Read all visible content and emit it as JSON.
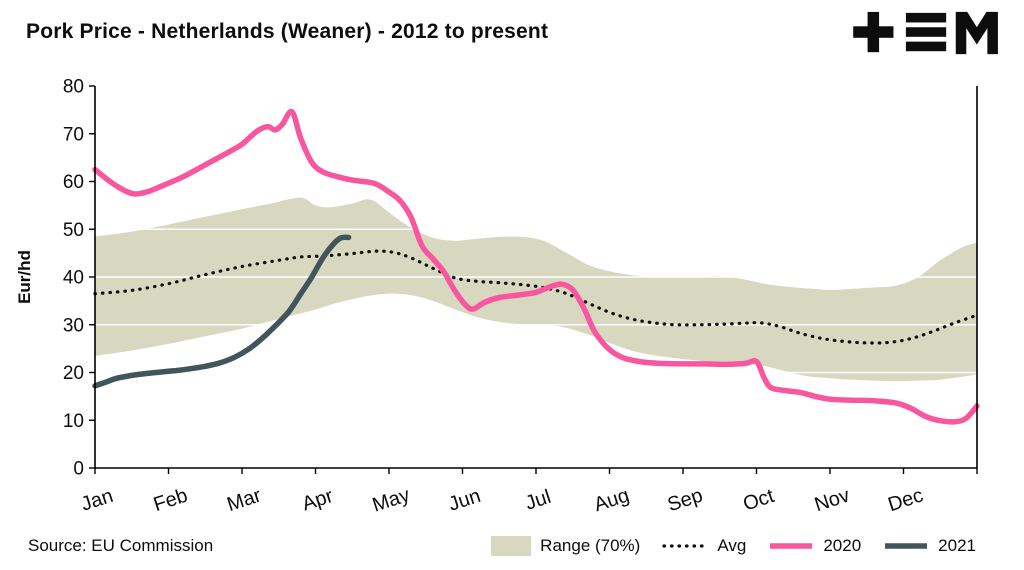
{
  "title": "Pork Price - Netherlands (Weaner) - 2012 to present",
  "source": "Source: EU Commission",
  "logo": {
    "name": "tem-logo"
  },
  "axis": {
    "y_label": "Eur/hd",
    "y_ticks": [
      0,
      10,
      20,
      30,
      40,
      50,
      60,
      70,
      80
    ],
    "x_labels": [
      "Jan",
      "Feb",
      "Mar",
      "Apr",
      "May",
      "Jun",
      "Jul",
      "Aug",
      "Sep",
      "Oct",
      "Nov",
      "Dec"
    ]
  },
  "legend": {
    "items": [
      {
        "label": "Range (70%)",
        "type": "band",
        "color": "#d8d8c1"
      },
      {
        "label": "Avg",
        "type": "dotted-line",
        "color": "#111111"
      },
      {
        "label": "2020",
        "type": "line",
        "color": "#f8579f"
      },
      {
        "label": "2021",
        "type": "line",
        "color": "#42555c"
      }
    ]
  },
  "colors": {
    "band": "#d8d8c1",
    "avg": "#111111",
    "y2020": "#f8579f",
    "y2021": "#42555c",
    "grid": "#ffffff",
    "axis": "#000000"
  },
  "chart_data": {
    "type": "line",
    "title": "Pork Price - Netherlands (Weaner) - 2012 to present",
    "xlabel": "",
    "ylabel": "Eur/hd",
    "ylim": [
      0,
      80
    ],
    "xlim": [
      0,
      12
    ],
    "x_unit": "months (0 = Jan 1, 12 = Dec 31)",
    "grid": "white horizontal gridlines every 10",
    "legend_position": "bottom",
    "x_labels": [
      "Jan",
      "Feb",
      "Mar",
      "Apr",
      "May",
      "Jun",
      "Jul",
      "Aug",
      "Sep",
      "Oct",
      "Nov",
      "Dec"
    ],
    "series": [
      {
        "name": "Range (70%)",
        "type": "band",
        "color": "#d8d8c1",
        "upper": [
          [
            0,
            48.5
          ],
          [
            0.5,
            49.5
          ],
          [
            1,
            51
          ],
          [
            1.5,
            52.6
          ],
          [
            2,
            54.2
          ],
          [
            2.4,
            55.4
          ],
          [
            2.8,
            56.6
          ],
          [
            3.0,
            55
          ],
          [
            3.2,
            54.6
          ],
          [
            3.5,
            55.4
          ],
          [
            3.75,
            56.2
          ],
          [
            4.0,
            53.5
          ],
          [
            4.3,
            50.3
          ],
          [
            4.6,
            48.2
          ],
          [
            4.9,
            47.6
          ],
          [
            5.2,
            48
          ],
          [
            5.5,
            48.4
          ],
          [
            5.8,
            48.4
          ],
          [
            6.1,
            47.6
          ],
          [
            6.4,
            45.2
          ],
          [
            6.7,
            42.6
          ],
          [
            7,
            41.2
          ],
          [
            7.3,
            40.4
          ],
          [
            7.6,
            40
          ],
          [
            7.9,
            40.1
          ],
          [
            8.2,
            40
          ],
          [
            8.5,
            40.2
          ],
          [
            8.8,
            39.6
          ],
          [
            9.1,
            38.6
          ],
          [
            9.4,
            38
          ],
          [
            9.7,
            37.6
          ],
          [
            10,
            37.3
          ],
          [
            10.3,
            37.5
          ],
          [
            10.6,
            37.8
          ],
          [
            10.9,
            38.2
          ],
          [
            11.2,
            40
          ],
          [
            11.5,
            43.5
          ],
          [
            11.8,
            46.2
          ],
          [
            12,
            47.2
          ]
        ],
        "lower": [
          [
            0,
            23.5
          ],
          [
            0.5,
            24.6
          ],
          [
            1,
            26
          ],
          [
            1.5,
            27.6
          ],
          [
            2,
            29.2
          ],
          [
            2.5,
            31.2
          ],
          [
            3,
            33.2
          ],
          [
            3.3,
            34.6
          ],
          [
            3.7,
            36
          ],
          [
            4,
            36.5
          ],
          [
            4.3,
            36.2
          ],
          [
            4.6,
            35
          ],
          [
            4.9,
            33.2
          ],
          [
            5.2,
            31.6
          ],
          [
            5.5,
            30.6
          ],
          [
            5.8,
            30.1
          ],
          [
            6.1,
            30
          ],
          [
            6.4,
            29.4
          ],
          [
            6.7,
            28
          ],
          [
            7,
            26.2
          ],
          [
            7.3,
            24.6
          ],
          [
            7.6,
            23.6
          ],
          [
            7.9,
            23
          ],
          [
            8.2,
            22.5
          ],
          [
            8.5,
            22.1
          ],
          [
            8.8,
            22
          ],
          [
            9.1,
            21.4
          ],
          [
            9.4,
            20.2
          ],
          [
            9.7,
            19.2
          ],
          [
            10,
            18.8
          ],
          [
            10.3,
            18.5
          ],
          [
            10.6,
            18.3
          ],
          [
            10.9,
            18.2
          ],
          [
            11.2,
            18.3
          ],
          [
            11.5,
            18.5
          ],
          [
            11.8,
            19.1
          ],
          [
            12,
            19.6
          ]
        ]
      },
      {
        "name": "Avg",
        "type": "dotted-line",
        "color": "#111111",
        "points": [
          [
            0,
            36.5
          ],
          [
            0.5,
            37.2
          ],
          [
            1,
            38.6
          ],
          [
            1.5,
            40.5
          ],
          [
            2,
            42.2
          ],
          [
            2.5,
            43.5
          ],
          [
            2.8,
            44.2
          ],
          [
            3.1,
            44.4
          ],
          [
            3.5,
            44.9
          ],
          [
            3.8,
            45.4
          ],
          [
            4.05,
            45.2
          ],
          [
            4.3,
            44
          ],
          [
            4.6,
            41.8
          ],
          [
            4.9,
            39.8
          ],
          [
            5.2,
            39.1
          ],
          [
            5.5,
            38.8
          ],
          [
            5.8,
            38.4
          ],
          [
            6.1,
            37.8
          ],
          [
            6.4,
            36.6
          ],
          [
            6.7,
            34.6
          ],
          [
            7,
            32.6
          ],
          [
            7.3,
            31.2
          ],
          [
            7.6,
            30.4
          ],
          [
            7.9,
            30
          ],
          [
            8.2,
            30
          ],
          [
            8.5,
            30.1
          ],
          [
            8.8,
            30.3
          ],
          [
            9.05,
            30.4
          ],
          [
            9.3,
            29.7
          ],
          [
            9.6,
            28.2
          ],
          [
            9.9,
            27.1
          ],
          [
            10.2,
            26.5
          ],
          [
            10.5,
            26.2
          ],
          [
            10.8,
            26.3
          ],
          [
            11.1,
            27.1
          ],
          [
            11.4,
            28.6
          ],
          [
            11.7,
            30.4
          ],
          [
            12,
            32
          ]
        ]
      },
      {
        "name": "2020",
        "type": "line",
        "color": "#f8579f",
        "points": [
          [
            0,
            62.5
          ],
          [
            0.25,
            59.5
          ],
          [
            0.5,
            57.5
          ],
          [
            0.7,
            57.8
          ],
          [
            0.9,
            59
          ],
          [
            1.2,
            61
          ],
          [
            1.5,
            63.5
          ],
          [
            1.8,
            66
          ],
          [
            2.0,
            67.8
          ],
          [
            2.2,
            70.5
          ],
          [
            2.35,
            71.5
          ],
          [
            2.45,
            70.8
          ],
          [
            2.55,
            72
          ],
          [
            2.68,
            74.6
          ],
          [
            2.8,
            69
          ],
          [
            2.95,
            64
          ],
          [
            3.1,
            62
          ],
          [
            3.3,
            61
          ],
          [
            3.5,
            60.3
          ],
          [
            3.8,
            59.6
          ],
          [
            4.0,
            57.8
          ],
          [
            4.15,
            56
          ],
          [
            4.3,
            52.5
          ],
          [
            4.45,
            46.5
          ],
          [
            4.6,
            43.8
          ],
          [
            4.75,
            41
          ],
          [
            4.9,
            37
          ],
          [
            5.05,
            34
          ],
          [
            5.15,
            33.3
          ],
          [
            5.3,
            34.7
          ],
          [
            5.5,
            35.7
          ],
          [
            5.75,
            36.2
          ],
          [
            6.0,
            36.8
          ],
          [
            6.2,
            38
          ],
          [
            6.35,
            38.5
          ],
          [
            6.5,
            37.3
          ],
          [
            6.65,
            33.5
          ],
          [
            6.8,
            28.5
          ],
          [
            7.0,
            24.8
          ],
          [
            7.2,
            23
          ],
          [
            7.45,
            22.2
          ],
          [
            7.7,
            21.9
          ],
          [
            8.0,
            21.8
          ],
          [
            8.3,
            21.8
          ],
          [
            8.6,
            21.7
          ],
          [
            8.85,
            21.9
          ],
          [
            9.0,
            22.3
          ],
          [
            9.1,
            19
          ],
          [
            9.2,
            16.8
          ],
          [
            9.4,
            16.2
          ],
          [
            9.6,
            15.8
          ],
          [
            9.8,
            15
          ],
          [
            10.0,
            14.4
          ],
          [
            10.3,
            14.2
          ],
          [
            10.6,
            14.1
          ],
          [
            10.9,
            13.6
          ],
          [
            11.1,
            12.5
          ],
          [
            11.3,
            10.8
          ],
          [
            11.5,
            9.9
          ],
          [
            11.7,
            9.7
          ],
          [
            11.85,
            10.4
          ],
          [
            12,
            13
          ]
        ]
      },
      {
        "name": "2021",
        "type": "line",
        "color": "#42555c",
        "points": [
          [
            0,
            17.2
          ],
          [
            0.15,
            18
          ],
          [
            0.3,
            18.8
          ],
          [
            0.5,
            19.4
          ],
          [
            0.7,
            19.8
          ],
          [
            0.9,
            20.1
          ],
          [
            1.1,
            20.4
          ],
          [
            1.3,
            20.8
          ],
          [
            1.5,
            21.3
          ],
          [
            1.7,
            22
          ],
          [
            1.9,
            23.2
          ],
          [
            2.1,
            25
          ],
          [
            2.3,
            27.5
          ],
          [
            2.5,
            30.5
          ],
          [
            2.65,
            33
          ],
          [
            2.8,
            36.5
          ],
          [
            2.95,
            40
          ],
          [
            3.1,
            44
          ],
          [
            3.25,
            47
          ],
          [
            3.35,
            48.2
          ],
          [
            3.45,
            48.3
          ]
        ]
      }
    ]
  }
}
